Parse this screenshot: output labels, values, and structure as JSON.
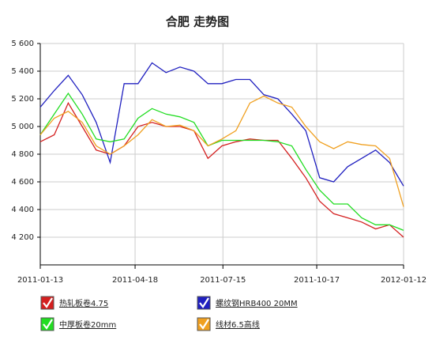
{
  "chart_data": {
    "type": "line",
    "title": "合肥 走势图",
    "x": [
      "2011-01-13",
      "2011-01-27",
      "2011-02-10",
      "2011-02-24",
      "2011-03-10",
      "2011-03-24",
      "2011-04-07",
      "2011-04-21",
      "2011-05-05",
      "2011-05-19",
      "2011-06-02",
      "2011-06-16",
      "2011-06-30",
      "2011-07-14",
      "2011-07-28",
      "2011-08-11",
      "2011-08-25",
      "2011-09-08",
      "2011-09-22",
      "2011-10-06",
      "2011-10-20",
      "2011-11-03",
      "2011-11-17",
      "2011-12-01",
      "2011-12-15",
      "2011-12-29",
      "2012-01-12"
    ],
    "xlim": [
      "2011-01-13",
      "2012-01-12"
    ],
    "xticks": [
      "2011-01-13",
      "2011-04-18",
      "2011-07-15",
      "2011-10-17",
      "2012-01-12"
    ],
    "ylim": [
      4000,
      5600
    ],
    "yticks": [
      {
        "value": 4200,
        "label": "4 200"
      },
      {
        "value": 4400,
        "label": "4 400"
      },
      {
        "value": 4600,
        "label": "4 600"
      },
      {
        "value": 4800,
        "label": "4 800"
      },
      {
        "value": 5000,
        "label": "5 000"
      },
      {
        "value": 5200,
        "label": "5 200"
      },
      {
        "value": 5400,
        "label": "5 400"
      },
      {
        "value": 5600,
        "label": "5 600"
      }
    ],
    "grid": true,
    "series": [
      {
        "name": "热轧板卷4.75",
        "color": "#d42020",
        "values": [
          4890,
          4940,
          5170,
          5000,
          4830,
          4800,
          4860,
          5000,
          5030,
          5000,
          5000,
          4970,
          4770,
          4860,
          4890,
          4910,
          4900,
          4900,
          4770,
          4630,
          4460,
          4370,
          4340,
          4310,
          4260,
          4290,
          4200
        ]
      },
      {
        "name": "螺纹钢HRB400 20MM",
        "color": "#2020c0",
        "values": [
          5140,
          5260,
          5370,
          5230,
          5030,
          4740,
          5310,
          5310,
          5460,
          5390,
          5430,
          5400,
          5310,
          5310,
          5340,
          5340,
          5230,
          5200,
          5090,
          4970,
          4630,
          4600,
          4710,
          4770,
          4830,
          4740,
          4570
        ]
      },
      {
        "name": "中厚板卷20mm",
        "color": "#22dd22",
        "values": [
          4940,
          5090,
          5240,
          5090,
          4910,
          4890,
          4910,
          5060,
          5130,
          5090,
          5070,
          5030,
          4860,
          4900,
          4900,
          4900,
          4900,
          4890,
          4860,
          4690,
          4540,
          4440,
          4440,
          4340,
          4290,
          4290,
          4250
        ]
      },
      {
        "name": "线材6.5高线",
        "color": "#f0a020",
        "values": [
          4940,
          5060,
          5110,
          5030,
          4860,
          4800,
          4860,
          4940,
          5050,
          5000,
          5010,
          4970,
          4860,
          4910,
          4970,
          5170,
          5220,
          5170,
          5140,
          5000,
          4890,
          4840,
          4890,
          4870,
          4860,
          4770,
          4420
        ]
      }
    ]
  }
}
